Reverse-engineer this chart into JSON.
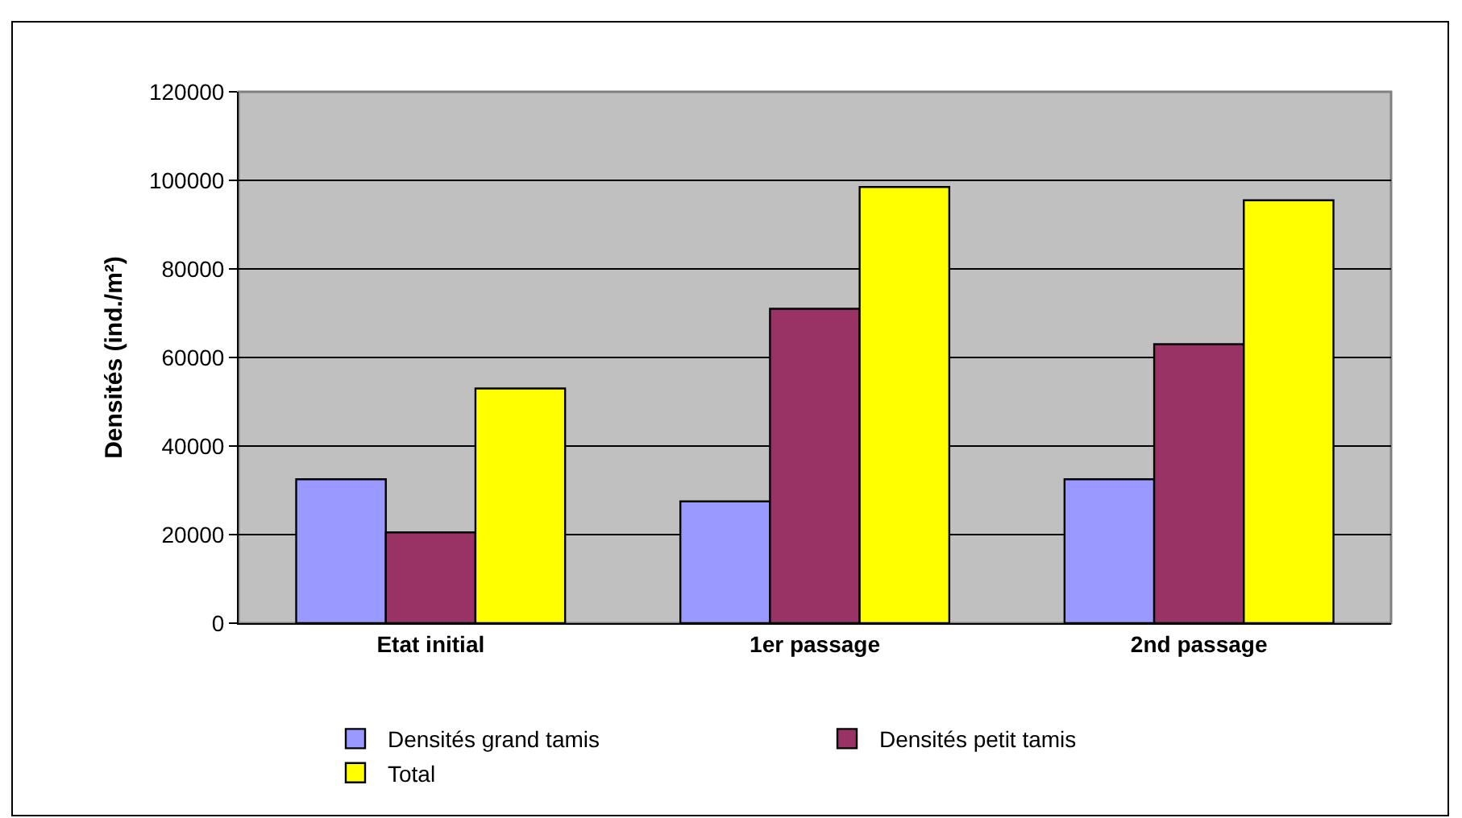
{
  "chart_data": {
    "type": "bar",
    "ylabel": "Densités (ind./m²)",
    "categories": [
      "Etat initial",
      "1er passage",
      "2nd passage"
    ],
    "series": [
      {
        "name": "Densités grand tamis",
        "color": "#9999ff",
        "values": [
          32500,
          27500,
          32500
        ]
      },
      {
        "name": "Densités petit tamis",
        "color": "#993366",
        "values": [
          20500,
          71000,
          63000
        ]
      },
      {
        "name": "Total",
        "color": "#ffff00",
        "values": [
          53000,
          98500,
          95500
        ]
      }
    ],
    "ylim": [
      0,
      120000
    ],
    "yticks": [
      0,
      20000,
      40000,
      60000,
      80000,
      100000,
      120000
    ],
    "grid": "y",
    "legend": "bottom"
  }
}
